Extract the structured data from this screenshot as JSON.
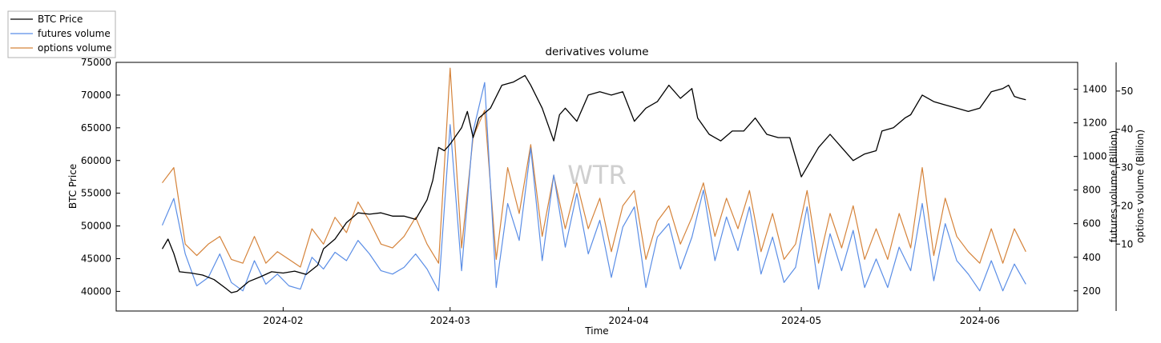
{
  "chart_data": {
    "type": "line",
    "title": "derivatives volume",
    "xlabel": "Time",
    "ylabel": "BTC Price",
    "y2label": "futures volume (Billion)",
    "y3label": "options volume (Billion)",
    "watermark": "WTR",
    "x_tick_labels": [
      "2024-02",
      "2024-03",
      "2024-04",
      "2024-05",
      "2024-06"
    ],
    "x_ticks": [
      "2024-02-01",
      "2024-03-01",
      "2024-04-01",
      "2024-05-01",
      "2024-06-01"
    ],
    "xlim": [
      "2024-01-03",
      "2024-06-18"
    ],
    "ylim": [
      37000,
      75000
    ],
    "y_ticks": [
      40000,
      45000,
      50000,
      55000,
      60000,
      65000,
      70000,
      75000
    ],
    "y2lim": [
      80,
      1560
    ],
    "y2_ticks": [
      200,
      400,
      600,
      800,
      1000,
      1200,
      1400
    ],
    "y3lim": [
      -7.5,
      57.5
    ],
    "y3_ticks": [
      10,
      20,
      30,
      40,
      50
    ],
    "legend": {
      "placement": "outside-top-left",
      "entries": [
        "BTC Price",
        "futures volume",
        "options volume"
      ]
    },
    "series": [
      {
        "name": "BTC Price",
        "axis": "left",
        "color": "#000000",
        "x": [
          "2024-01-11",
          "2024-01-12",
          "2024-01-13",
          "2024-01-14",
          "2024-01-16",
          "2024-01-18",
          "2024-01-20",
          "2024-01-22",
          "2024-01-23",
          "2024-01-24",
          "2024-01-26",
          "2024-01-28",
          "2024-01-30",
          "2024-02-01",
          "2024-02-03",
          "2024-02-05",
          "2024-02-07",
          "2024-02-08",
          "2024-02-10",
          "2024-02-12",
          "2024-02-14",
          "2024-02-16",
          "2024-02-18",
          "2024-02-20",
          "2024-02-22",
          "2024-02-24",
          "2024-02-26",
          "2024-02-27",
          "2024-02-28",
          "2024-02-29",
          "2024-03-01",
          "2024-03-03",
          "2024-03-04",
          "2024-03-05",
          "2024-03-06",
          "2024-03-08",
          "2024-03-10",
          "2024-03-12",
          "2024-03-14",
          "2024-03-15",
          "2024-03-17",
          "2024-03-19",
          "2024-03-20",
          "2024-03-21",
          "2024-03-23",
          "2024-03-25",
          "2024-03-27",
          "2024-03-29",
          "2024-03-31",
          "2024-04-02",
          "2024-04-04",
          "2024-04-06",
          "2024-04-08",
          "2024-04-10",
          "2024-04-12",
          "2024-04-13",
          "2024-04-15",
          "2024-04-17",
          "2024-04-19",
          "2024-04-21",
          "2024-04-23",
          "2024-04-25",
          "2024-04-27",
          "2024-04-29",
          "2024-05-01",
          "2024-05-02",
          "2024-05-04",
          "2024-05-06",
          "2024-05-08",
          "2024-05-10",
          "2024-05-12",
          "2024-05-14",
          "2024-05-15",
          "2024-05-17",
          "2024-05-19",
          "2024-05-20",
          "2024-05-22",
          "2024-05-24",
          "2024-05-26",
          "2024-05-28",
          "2024-05-30",
          "2024-06-01",
          "2024-06-03",
          "2024-06-05",
          "2024-06-06",
          "2024-06-07",
          "2024-06-08",
          "2024-06-09"
        ],
        "values": [
          46500,
          48000,
          45800,
          43000,
          42800,
          42500,
          41800,
          40500,
          39800,
          40000,
          41500,
          42200,
          43000,
          42800,
          43100,
          42600,
          44000,
          46500,
          48000,
          50500,
          52000,
          51800,
          52000,
          51500,
          51500,
          51000,
          54000,
          57000,
          62000,
          61500,
          62500,
          65000,
          67500,
          63500,
          66500,
          68000,
          71500,
          72000,
          73000,
          71500,
          68000,
          63000,
          67000,
          68000,
          66000,
          70000,
          70500,
          70000,
          70500,
          66000,
          68000,
          69000,
          71500,
          69500,
          71000,
          66500,
          64000,
          63000,
          64500,
          64500,
          66500,
          64000,
          63500,
          63500,
          57500,
          59000,
          62000,
          64000,
          62000,
          60000,
          61000,
          61500,
          64500,
          65000,
          66500,
          67000,
          70000,
          69000,
          68500,
          68000,
          67500,
          68000,
          70500,
          71000,
          71500,
          69800,
          69500,
          69300
        ]
      },
      {
        "name": "futures volume",
        "axis": "right",
        "color": "#5b8ee6",
        "x": [
          "2024-01-11",
          "2024-01-13",
          "2024-01-15",
          "2024-01-17",
          "2024-01-19",
          "2024-01-21",
          "2024-01-23",
          "2024-01-25",
          "2024-01-27",
          "2024-01-29",
          "2024-01-31",
          "2024-02-02",
          "2024-02-04",
          "2024-02-06",
          "2024-02-08",
          "2024-02-10",
          "2024-02-12",
          "2024-02-14",
          "2024-02-16",
          "2024-02-18",
          "2024-02-20",
          "2024-02-22",
          "2024-02-24",
          "2024-02-26",
          "2024-02-28",
          "2024-03-01",
          "2024-03-03",
          "2024-03-05",
          "2024-03-07",
          "2024-03-09",
          "2024-03-11",
          "2024-03-13",
          "2024-03-15",
          "2024-03-17",
          "2024-03-19",
          "2024-03-21",
          "2024-03-23",
          "2024-03-25",
          "2024-03-27",
          "2024-03-29",
          "2024-03-31",
          "2024-04-02",
          "2024-04-04",
          "2024-04-06",
          "2024-04-08",
          "2024-04-10",
          "2024-04-12",
          "2024-04-14",
          "2024-04-16",
          "2024-04-18",
          "2024-04-20",
          "2024-04-22",
          "2024-04-24",
          "2024-04-26",
          "2024-04-28",
          "2024-04-30",
          "2024-05-02",
          "2024-05-04",
          "2024-05-06",
          "2024-05-08",
          "2024-05-10",
          "2024-05-12",
          "2024-05-14",
          "2024-05-16",
          "2024-05-18",
          "2024-05-20",
          "2024-05-22",
          "2024-05-24",
          "2024-05-26",
          "2024-05-28",
          "2024-05-30",
          "2024-06-01",
          "2024-06-03",
          "2024-06-05",
          "2024-06-07",
          "2024-06-09"
        ],
        "values": [
          590,
          750,
          420,
          230,
          280,
          420,
          250,
          200,
          380,
          240,
          300,
          230,
          210,
          400,
          330,
          430,
          380,
          500,
          420,
          320,
          300,
          340,
          420,
          330,
          200,
          1190,
          320,
          1150,
          1440,
          220,
          720,
          500,
          1050,
          380,
          890,
          460,
          780,
          420,
          620,
          280,
          580,
          700,
          220,
          520,
          600,
          330,
          520,
          800,
          380,
          640,
          440,
          700,
          300,
          520,
          250,
          340,
          700,
          210,
          540,
          320,
          560,
          220,
          390,
          220,
          460,
          320,
          720,
          260,
          600,
          380,
          300,
          200,
          380,
          200,
          360,
          240
        ]
      },
      {
        "name": "options volume",
        "axis": "right2",
        "color": "#d5833a",
        "x": [
          "2024-01-11",
          "2024-01-13",
          "2024-01-15",
          "2024-01-17",
          "2024-01-19",
          "2024-01-21",
          "2024-01-23",
          "2024-01-25",
          "2024-01-27",
          "2024-01-29",
          "2024-01-31",
          "2024-02-02",
          "2024-02-04",
          "2024-02-06",
          "2024-02-08",
          "2024-02-10",
          "2024-02-12",
          "2024-02-14",
          "2024-02-16",
          "2024-02-18",
          "2024-02-20",
          "2024-02-22",
          "2024-02-24",
          "2024-02-26",
          "2024-02-28",
          "2024-03-01",
          "2024-03-03",
          "2024-03-05",
          "2024-03-07",
          "2024-03-09",
          "2024-03-11",
          "2024-03-13",
          "2024-03-15",
          "2024-03-17",
          "2024-03-19",
          "2024-03-21",
          "2024-03-23",
          "2024-03-25",
          "2024-03-27",
          "2024-03-29",
          "2024-03-31",
          "2024-04-02",
          "2024-04-04",
          "2024-04-06",
          "2024-04-08",
          "2024-04-10",
          "2024-04-12",
          "2024-04-14",
          "2024-04-16",
          "2024-04-18",
          "2024-04-20",
          "2024-04-22",
          "2024-04-24",
          "2024-04-26",
          "2024-04-28",
          "2024-04-30",
          "2024-05-02",
          "2024-05-04",
          "2024-05-06",
          "2024-05-08",
          "2024-05-10",
          "2024-05-12",
          "2024-05-14",
          "2024-05-16",
          "2024-05-18",
          "2024-05-20",
          "2024-05-22",
          "2024-05-24",
          "2024-05-26",
          "2024-05-28",
          "2024-05-30",
          "2024-06-01",
          "2024-06-03",
          "2024-06-05",
          "2024-06-07",
          "2024-06-09"
        ],
        "values": [
          26,
          30,
          10,
          7,
          10,
          12,
          6,
          5,
          12,
          5,
          8,
          6,
          4,
          14,
          10,
          17,
          13,
          21,
          16,
          10,
          9,
          12,
          17,
          10,
          5,
          56,
          9,
          38,
          45,
          6,
          30,
          18,
          36,
          12,
          28,
          14,
          26,
          14,
          22,
          8,
          20,
          24,
          6,
          16,
          20,
          10,
          17,
          26,
          12,
          22,
          14,
          24,
          8,
          18,
          6,
          10,
          24,
          5,
          18,
          9,
          20,
          6,
          14,
          6,
          18,
          9,
          30,
          7,
          22,
          12,
          8,
          5,
          14,
          5,
          14,
          8
        ]
      }
    ]
  }
}
